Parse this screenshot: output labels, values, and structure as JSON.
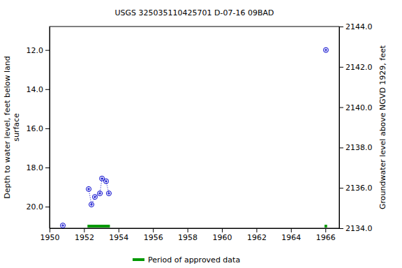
{
  "chart_data": {
    "type": "line",
    "title": "USGS 325035110425701 D-07-16 09BAD",
    "y_label": [
      "Depth to water level, feet below land",
      "surface"
    ],
    "y2_label": "Groundwater level above NGVD 1929, feet",
    "xlim": [
      1950,
      1966.8
    ],
    "xticks": [
      1950,
      1952,
      1954,
      1956,
      1958,
      1960,
      1962,
      1964,
      1966
    ],
    "ylim": [
      21.1,
      10.8
    ],
    "yticks": [
      {
        "value": 12,
        "label": "12.0"
      },
      {
        "value": 14,
        "label": "14.0"
      },
      {
        "value": 16,
        "label": "16.0"
      },
      {
        "value": 18,
        "label": "18.0"
      },
      {
        "value": 20,
        "label": "20.0"
      }
    ],
    "y2lim": [
      2134,
      2144
    ],
    "y2ticks": [
      {
        "value": 2134,
        "label": "2134.0"
      },
      {
        "value": 2136,
        "label": "2136.0"
      },
      {
        "value": 2138,
        "label": "2138.0"
      },
      {
        "value": 2140,
        "label": "2140.0"
      },
      {
        "value": 2142,
        "label": "2142.0"
      },
      {
        "value": 2144,
        "label": "2144.0"
      }
    ],
    "series": [
      {
        "color": "#0000cc",
        "marker": "circle-cross",
        "line_style": "dotted",
        "x": [
          1950.77,
          null,
          1952.27,
          1952.43,
          1952.63,
          1952.92,
          1953.04,
          1953.28,
          1953.44,
          null,
          1966.03
        ],
        "values": [
          20.96,
          null,
          19.1,
          19.89,
          19.5,
          19.32,
          18.56,
          18.7,
          19.32,
          null,
          12.0
        ]
      }
    ],
    "periods": {
      "name": "Period of approved data",
      "color": "#009900",
      "ranges": [
        [
          1952.2,
          1953.5
        ],
        [
          1965.95,
          1966.1
        ]
      ]
    }
  }
}
